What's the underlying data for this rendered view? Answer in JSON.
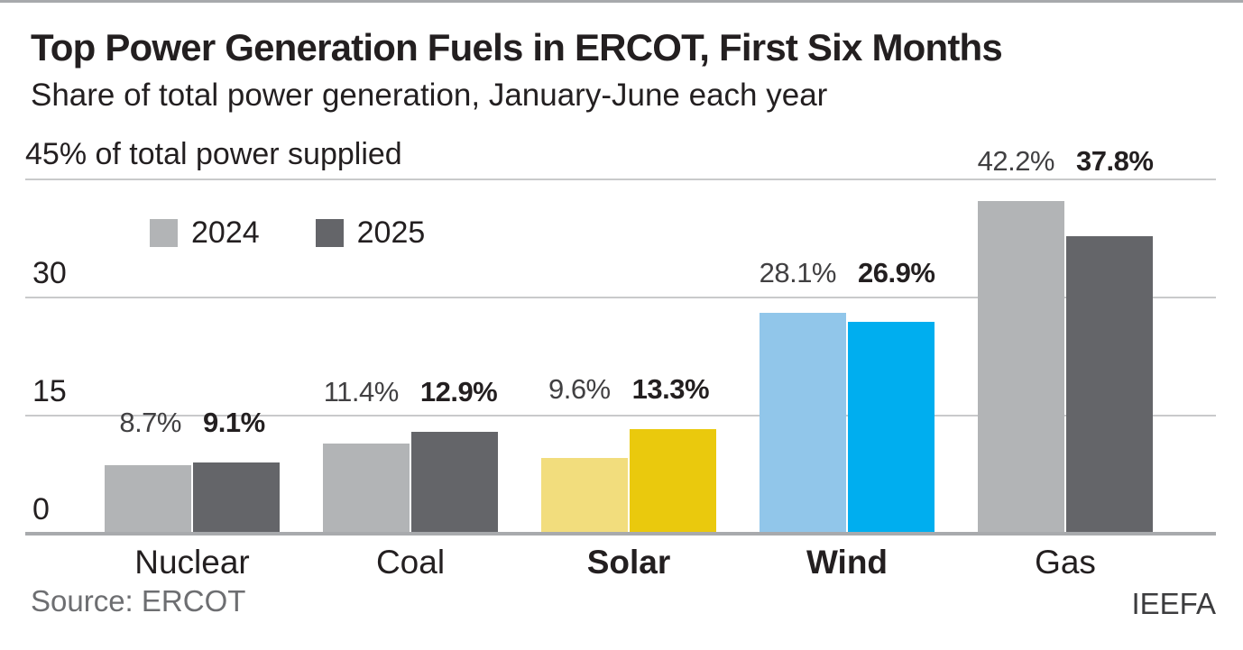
{
  "chart_data": {
    "type": "bar",
    "title": "Top Power Generation Fuels in ERCOT, First Six Months",
    "subtitle": "Share of total power generation, January-June each year",
    "y_axis": {
      "top_label": "45% of total power supplied",
      "ticks": [
        {
          "value": 0,
          "label": "0"
        },
        {
          "value": 15,
          "label": "15"
        },
        {
          "value": 30,
          "label": "30"
        }
      ],
      "max": 45,
      "unit": "percent",
      "grid": true
    },
    "categories": [
      {
        "name": "Nuclear",
        "bold": false,
        "colors": [
          "#b2b4b6",
          "#646569"
        ]
      },
      {
        "name": "Coal",
        "bold": false,
        "colors": [
          "#b2b4b6",
          "#646569"
        ]
      },
      {
        "name": "Solar",
        "bold": true,
        "colors": [
          "#f2dd7d",
          "#eac90d"
        ]
      },
      {
        "name": "Wind",
        "bold": true,
        "colors": [
          "#91c6ea",
          "#00aeef"
        ]
      },
      {
        "name": "Gas",
        "bold": false,
        "colors": [
          "#b2b4b6",
          "#646569"
        ]
      }
    ],
    "series": [
      {
        "name": "2024",
        "values": [
          8.7,
          11.4,
          9.6,
          28.1,
          42.2
        ],
        "labels": [
          "8.7%",
          "11.4%",
          "9.6%",
          "28.1%",
          "42.2%"
        ]
      },
      {
        "name": "2025",
        "values": [
          9.1,
          12.9,
          13.3,
          26.9,
          37.8
        ],
        "labels": [
          "9.1%",
          "12.9%",
          "13.3%",
          "26.9%",
          "37.8%"
        ]
      }
    ],
    "legend": [
      {
        "label": "2024",
        "color": "#b2b4b6"
      },
      {
        "label": "2025",
        "color": "#646569"
      }
    ],
    "legend_position": "top-left-inside"
  },
  "footer": {
    "source": "Source: ERCOT",
    "credit": "IEEFA"
  },
  "colors": {
    "text_dark": "#231f20",
    "text_value_regular": "#414042",
    "text_source": "#6d6e71",
    "gridline": "#c9cacb",
    "baseline": "#a8aaad"
  }
}
